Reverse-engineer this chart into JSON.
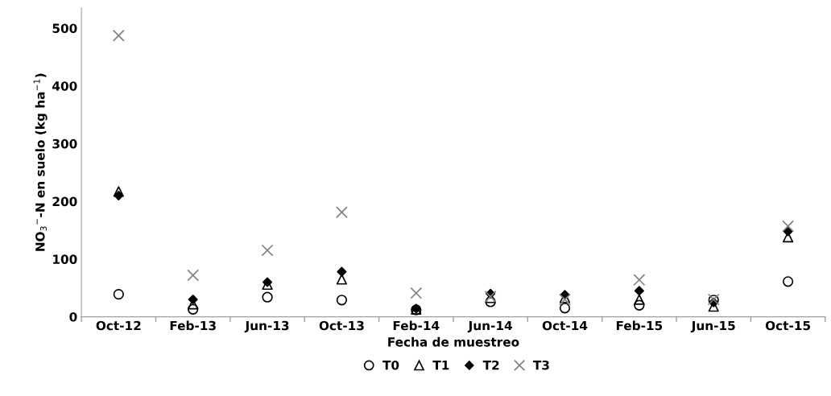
{
  "chart_data": {
    "type": "scatter",
    "xlabel": "Fecha de muestreo",
    "ylabel": "NO$_{3}$$^{−}$-N en suelo (kg ha$^{−1}$)",
    "categories": [
      "Oct-12",
      "Feb-13",
      "Jun-13",
      "Oct-13",
      "Feb-14",
      "Jun-14",
      "Oct-14",
      "Feb-15",
      "Jun-15",
      "Oct-15"
    ],
    "ylim": [
      0,
      535
    ],
    "yticks": [
      0,
      100,
      200,
      300,
      400,
      500
    ],
    "grid": false,
    "legend": "bottom",
    "series": [
      {
        "name": "T0",
        "color": "#000000",
        "marker": "circle",
        "values": [
          39,
          13,
          34,
          29,
          12,
          26,
          15,
          20,
          29,
          61
        ]
      },
      {
        "name": "T1",
        "color": "#000000",
        "marker": "triangle",
        "values": [
          217,
          22,
          56,
          65,
          13,
          33,
          33,
          30,
          18,
          138
        ]
      },
      {
        "name": "T2",
        "color": "#000000",
        "marker": "diamond",
        "values": [
          210,
          30,
          60,
          78,
          14,
          40,
          38,
          45,
          25,
          148
        ]
      },
      {
        "name": "T3",
        "color": "#808080",
        "marker": "cross",
        "values": [
          487,
          72,
          115,
          181,
          41,
          35,
          30,
          64,
          30,
          157
        ]
      }
    ]
  }
}
